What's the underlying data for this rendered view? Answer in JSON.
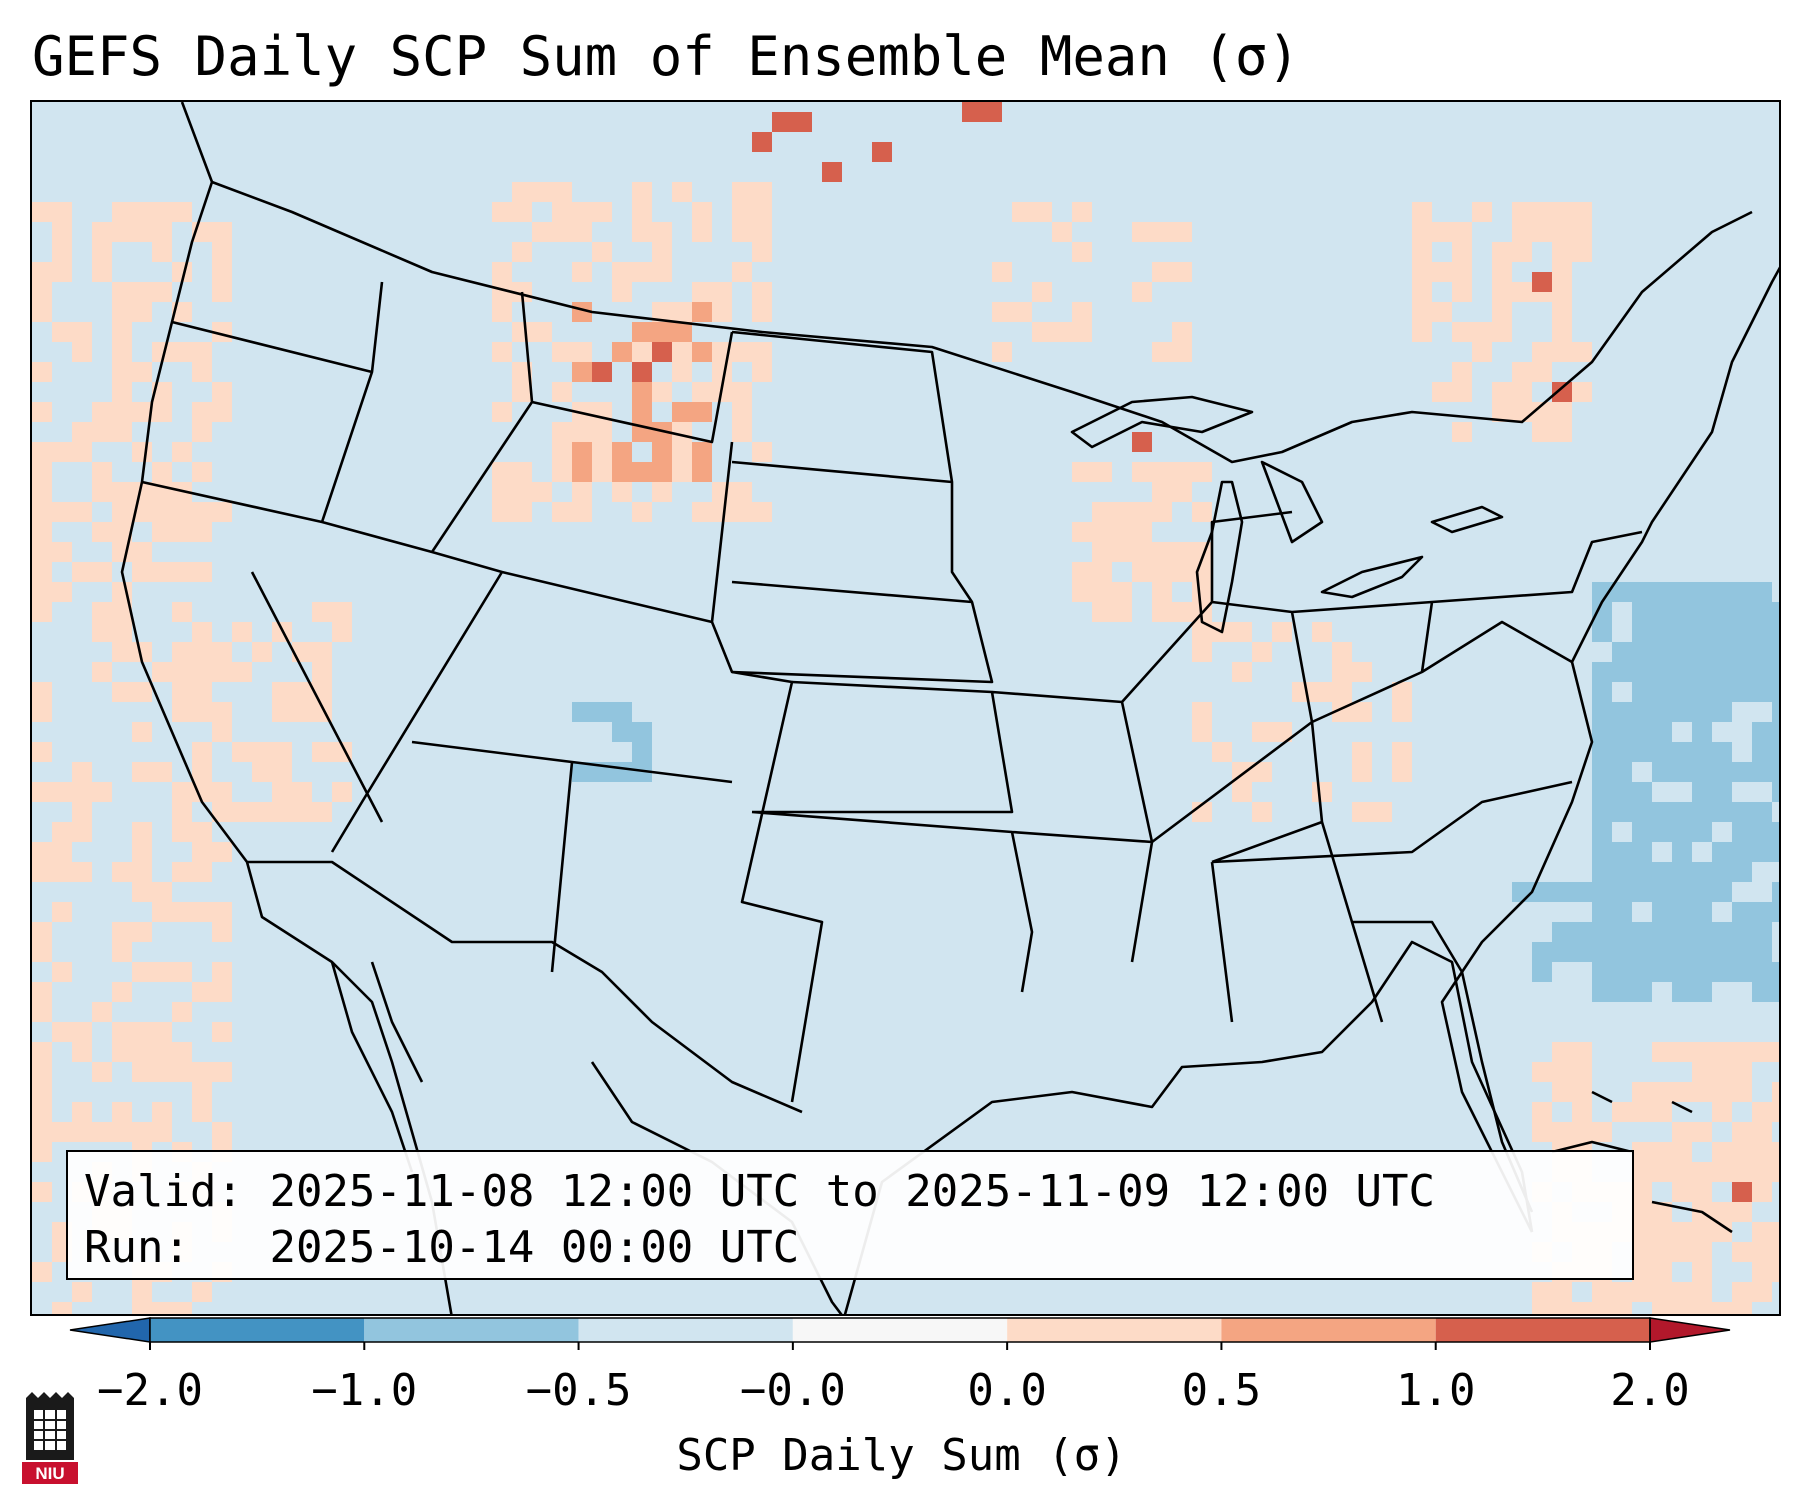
{
  "title": "GEFS Daily SCP Sum of Ensemble Mean (σ)",
  "map": {
    "type": "gridded-anomaly-map",
    "region": "CONUS",
    "background_color": "#d1e5f0",
    "outline_color": "#000000"
  },
  "info_box": {
    "valid_label": "Valid:",
    "valid_value": "2025-11-08 12:00 UTC to 2025-11-09 12:00 UTC",
    "run_label": "Run:",
    "run_value": "2025-10-14 00:00 UTC"
  },
  "colorbar": {
    "label": "SCP Daily Sum (σ)",
    "ticks": [
      "−2.0",
      "−1.0",
      "−0.5",
      "−0.0",
      "0.0",
      "0.5",
      "1.0",
      "2.0"
    ],
    "colors": [
      "#2166ac",
      "#4393c3",
      "#92c5de",
      "#d1e5f0",
      "#f7f7f7",
      "#fddbc7",
      "#f4a582",
      "#d6604d",
      "#b2182b"
    ]
  },
  "logo": {
    "text": "NIU"
  }
}
